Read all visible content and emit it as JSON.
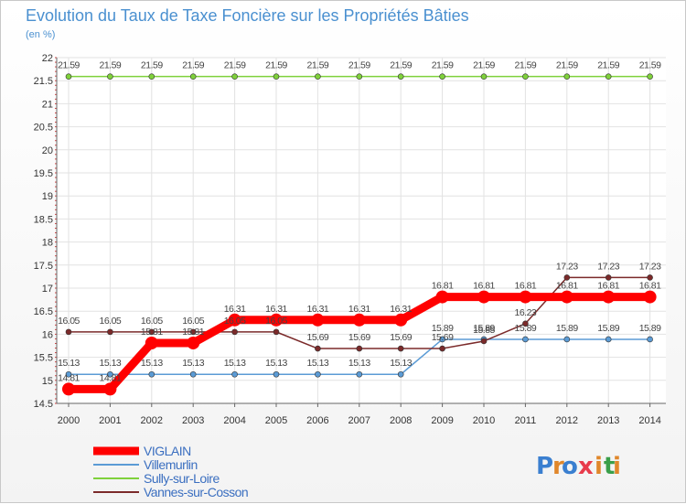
{
  "chart_data": {
    "type": "line",
    "title": "Evolution du Taux de Taxe Foncière sur les Propriétés Bâties",
    "subtitle": "(en %)",
    "xlabel": "",
    "ylabel": "",
    "categories": [
      "2000",
      "2001",
      "2002",
      "2003",
      "2004",
      "2005",
      "2006",
      "2007",
      "2008",
      "2009",
      "2010",
      "2011",
      "2012",
      "2013",
      "2014"
    ],
    "ylim": [
      14.5,
      22
    ],
    "yticks": [
      "14.5",
      "15",
      "15.5",
      "16",
      "16.5",
      "17",
      "17.5",
      "18",
      "18.5",
      "19",
      "19.5",
      "20",
      "20.5",
      "21",
      "21.5",
      "22"
    ],
    "grid": true,
    "legend_position": "bottom-left",
    "series": [
      {
        "name": "VIGLAIN",
        "color": "#ff0000",
        "values": [
          14.81,
          14.81,
          15.81,
          15.81,
          16.31,
          16.31,
          16.31,
          16.31,
          16.31,
          16.81,
          16.81,
          16.81,
          16.81,
          16.81,
          16.81
        ],
        "labels": [
          "14.81",
          "14.81",
          "15.81",
          "15.81",
          "16.31",
          "16.31",
          "16.31",
          "16.31",
          "16.31",
          "16.81",
          "16.81",
          "16.81",
          "16.81",
          "16.81",
          "16.81"
        ]
      },
      {
        "name": "Villemurlin",
        "color": "#5b9bd5",
        "values": [
          15.13,
          15.13,
          15.13,
          15.13,
          15.13,
          15.13,
          15.13,
          15.13,
          15.13,
          15.89,
          15.89,
          15.89,
          15.89,
          15.89,
          15.89
        ],
        "labels": [
          "15.13",
          "15.13",
          "15.13",
          "15.13",
          "15.13",
          "15.13",
          "15.13",
          "15.13",
          "15.13",
          "15.89",
          "15.89",
          "15.89",
          "15.89",
          "15.89",
          "15.89"
        ]
      },
      {
        "name": "Sully-sur-Loire",
        "color": "#7fd13b",
        "values": [
          21.59,
          21.59,
          21.59,
          21.59,
          21.59,
          21.59,
          21.59,
          21.59,
          21.59,
          21.59,
          21.59,
          21.59,
          21.59,
          21.59,
          21.59
        ],
        "labels": [
          "21.59",
          "21.59",
          "21.59",
          "21.59",
          "21.59",
          "21.59",
          "21.59",
          "21.59",
          "21.59",
          "21.59",
          "21.59",
          "21.59",
          "21.59",
          "21.59",
          "21.59"
        ]
      },
      {
        "name": "Vannes-sur-Cosson",
        "color": "#7b2a2a",
        "values": [
          16.05,
          16.05,
          16.05,
          16.05,
          16.05,
          16.05,
          15.69,
          15.69,
          15.69,
          15.69,
          15.85,
          16.23,
          17.23,
          17.23,
          17.23
        ],
        "labels": [
          "16.05",
          "16.05",
          "16.05",
          "16.05",
          "16.05",
          "16.05",
          "15.69",
          "15.69",
          "15.69",
          "15.69",
          "15.85",
          "16.23",
          "17.23",
          "17.23",
          "17.23"
        ]
      }
    ]
  },
  "brand": {
    "logo_text": "Proxiti",
    "letters": [
      "P",
      "r",
      "o",
      "x",
      "i",
      "t",
      "i"
    ],
    "colors": [
      "#3a7fd0",
      "#e0872b",
      "#3a7fd0",
      "#e83b4b",
      "#e0872b",
      "#3a9f4a",
      "#e0872b"
    ]
  }
}
